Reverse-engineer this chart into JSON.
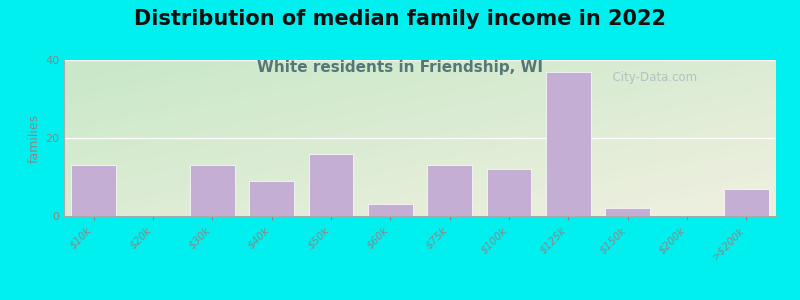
{
  "title": "Distribution of median family income in 2022",
  "subtitle": "White residents in Friendship, WI",
  "ylabel": "families",
  "categories": [
    "$10k",
    "$20k",
    "$30k",
    "$40k",
    "$50k",
    "$60k",
    "$75k",
    "$100k",
    "$125k",
    "$150k",
    "$200k",
    ">$200k"
  ],
  "values": [
    13,
    0,
    13,
    9,
    16,
    3,
    13,
    12,
    37,
    2,
    0,
    7
  ],
  "bar_color": "#c4aed4",
  "bar_edge_color": "#ffffff",
  "ylim": [
    0,
    40
  ],
  "yticks": [
    0,
    20,
    40
  ],
  "background_outer": "#00efef",
  "background_plot_topleft": "#c8e8c8",
  "background_plot_bottomright": "#f0f0e0",
  "grid_color": "#ffffff",
  "title_fontsize": 15,
  "subtitle_fontsize": 11,
  "subtitle_color": "#557777",
  "title_color": "#111111",
  "watermark": "  City-Data.com",
  "watermark_color": "#aabbc0",
  "tick_color": "#888888",
  "ylabel_color": "#888888"
}
